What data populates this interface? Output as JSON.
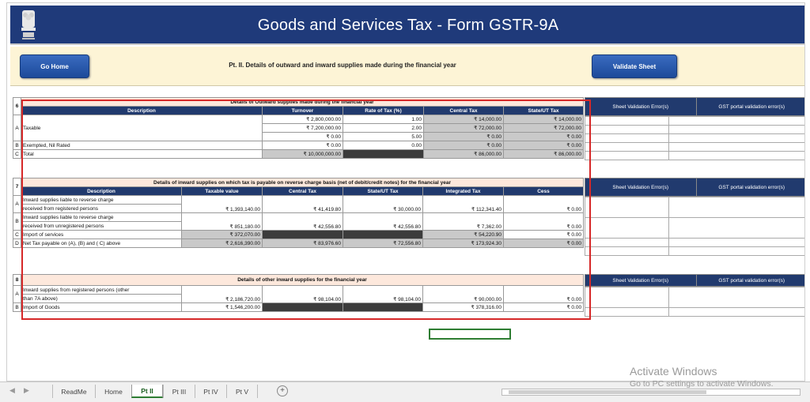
{
  "header": {
    "title": "Goods and Services Tax - Form GSTR-9A"
  },
  "nav": {
    "go_home": "Go Home",
    "validate_sheet": "Validate Sheet",
    "part_title": "Pt. II. Details of outward and inward supplies made during the financial year"
  },
  "validation_headers": {
    "sheet": "Sheet Validation Error(s)",
    "portal": "GST portal validation error(s)"
  },
  "sec6": {
    "no": "6",
    "title": "Details of Outward supplies made during the financial year",
    "cols": [
      "Description",
      "Turnover",
      "Rate of Tax (%)",
      "Central Tax",
      "State/UT Tax"
    ],
    "rows": [
      {
        "label": "A",
        "desc": "Taxable",
        "turnover": "₹ 2,800,000.00",
        "rate": "1.00",
        "ct": "₹ 14,000.00",
        "st": "₹ 14,000.00"
      },
      {
        "label": "",
        "desc": "",
        "turnover": "₹ 7,200,000.00",
        "rate": "2.00",
        "ct": "₹ 72,000.00",
        "st": "₹ 72,000.00"
      },
      {
        "label": "",
        "desc": "",
        "turnover": "₹ 0.00",
        "rate": "5.00",
        "ct": "₹ 0.00",
        "st": "₹ 0.00"
      },
      {
        "label": "B",
        "desc": "Exempted, Nil Rated",
        "turnover": "₹ 0.00",
        "rate": "0.00",
        "ct": "₹ 0.00",
        "st": "₹ 0.00"
      },
      {
        "label": "C",
        "desc": "Total",
        "turnover": "₹ 10,000,000.00",
        "rate": "",
        "ct": "₹ 86,000.00",
        "st": "₹ 86,000.00"
      }
    ]
  },
  "sec7": {
    "no": "7",
    "title": "Details of inward supplies on which tax is payable on reverse charge basis (net of debit/credit notes) for the financial year",
    "cols": [
      "Description",
      "Taxable value",
      "Central Tax",
      "State/UT Tax",
      "Integrated Tax",
      "Cess"
    ],
    "rows": [
      {
        "label": "A",
        "desc1": "Inward supplies liable to reverse charge",
        "desc2": "received from registered persons",
        "tv": "₹ 1,393,140.00",
        "ct": "₹ 41,419.80",
        "st": "₹ 30,000.00",
        "it": "₹ 112,341.40",
        "cess": "₹ 0.00"
      },
      {
        "label": "B",
        "desc1": "Inward supplies liable to reverse charge",
        "desc2": "received from unregistered persons",
        "tv": "₹ 851,180.00",
        "ct": "₹ 42,556.80",
        "st": "₹ 42,556.80",
        "it": "₹ 7,362.00",
        "cess": "₹ 0.00"
      },
      {
        "label": "C",
        "desc1": "Import of services",
        "desc2": "",
        "tv": "₹ 372,070.00",
        "ct": "",
        "st": "",
        "it": "₹ 54,220.90",
        "cess": "₹ 0.00"
      },
      {
        "label": "D",
        "desc1": "Net Tax payable on (A), (B) and ( C) above",
        "desc2": "",
        "tv": "₹ 2,616,390.00",
        "ct": "₹ 83,976.60",
        "st": "₹ 72,556.80",
        "it": "₹ 173,924.30",
        "cess": "₹ 0.00"
      }
    ]
  },
  "sec8": {
    "no": "8",
    "title": "Details of other inward supplies for the financial year",
    "rows": [
      {
        "label": "A",
        "desc1": "Inward supplies from registered persons (other",
        "desc2": "than 7A above)",
        "tv": "₹ 2,186,720.00",
        "ct": "₹ 98,104.00",
        "st": "₹ 98,104.00",
        "it": "₹ 90,000.00",
        "cess": "₹ 0.00"
      },
      {
        "label": "B",
        "desc1": "Import of Goods",
        "desc2": "",
        "tv": "₹ 1,546,200.00",
        "ct": "",
        "st": "",
        "it": "₹ 378,316.00",
        "cess": "₹ 0.00"
      }
    ]
  },
  "tabs": [
    "ReadMe",
    "Home",
    "Pt II",
    "Pt III",
    "Pt IV",
    "Pt V"
  ],
  "tab_active": "Pt II",
  "watermark": {
    "line1": "Activate Windows",
    "line2": "Go to PC settings to activate Windows."
  }
}
